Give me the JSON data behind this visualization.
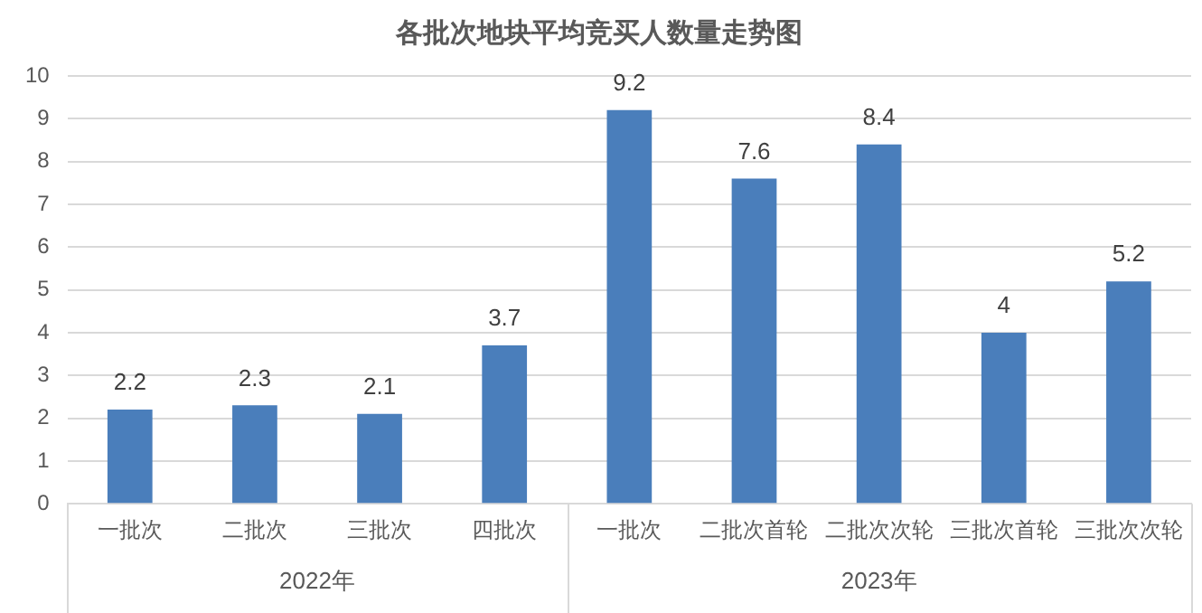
{
  "chart_data": {
    "type": "bar",
    "title": "各批次地块平均竞买人数量走势图",
    "categories": [
      "一批次",
      "二批次",
      "三批次",
      "四批次",
      "一批次",
      "二批次首轮",
      "二批次次轮",
      "三批次首轮",
      "三批次次轮"
    ],
    "values": [
      2.2,
      2.3,
      2.1,
      3.7,
      9.2,
      7.6,
      8.4,
      4,
      5.2
    ],
    "color": "#4a7ebb",
    "ylim": [
      0,
      10
    ],
    "yticks": [
      0,
      1,
      2,
      3,
      4,
      5,
      6,
      7,
      8,
      9,
      10
    ],
    "grid": "y",
    "legend": false,
    "data_labels": true,
    "annotations": [
      "2022年",
      "2023年"
    ]
  }
}
